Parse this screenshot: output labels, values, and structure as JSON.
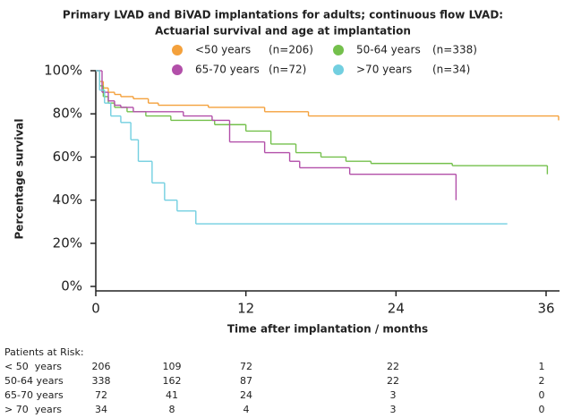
{
  "chart_data": {
    "type": "step",
    "title": "Primary LVAD and BiVAD implantations for adults; continuous flow LVAD:",
    "subtitle": "Actuarial survival and age at implantation",
    "xlabel": "Time after implantation / months",
    "ylabel": "Percentage survival",
    "xlim": [
      0,
      37
    ],
    "xticks": [
      0,
      12,
      24,
      36
    ],
    "ylim": [
      0,
      100
    ],
    "yticks": [
      {
        "value": 0,
        "label": "0%"
      },
      {
        "value": 20,
        "label": "20%"
      },
      {
        "value": 40,
        "label": "40%"
      },
      {
        "value": 60,
        "label": "60%"
      },
      {
        "value": 80,
        "label": "80%"
      },
      {
        "value": 100,
        "label": "100%"
      }
    ],
    "series": [
      {
        "name": "<50 years",
        "n_label": "(n=206)",
        "color": "#f4a13c",
        "x": [
          0,
          0.3,
          0.6,
          1,
          1.5,
          2,
          3,
          4.2,
          5,
          9,
          13.5,
          17,
          37
        ],
        "values": [
          100,
          95,
          92,
          90,
          89,
          88,
          87,
          85,
          84,
          83,
          81,
          79,
          77
        ]
      },
      {
        "name": "50-64 years",
        "n_label": "(n=338)",
        "color": "#74c04c",
        "x": [
          0,
          0.3,
          0.6,
          1,
          1.5,
          2.5,
          4,
          6,
          9.5,
          12,
          14,
          16,
          18,
          20,
          22,
          28.5,
          36.1
        ],
        "values": [
          100,
          93,
          88,
          85,
          83,
          81,
          79,
          77,
          75,
          72,
          66,
          62,
          60,
          58,
          57,
          56,
          52
        ]
      },
      {
        "name": "65-70 years",
        "n_label": "(n=72)",
        "color": "#b24fa9",
        "x": [
          0,
          0.5,
          1,
          1.5,
          2,
          3,
          7,
          9.3,
          10.7,
          13.5,
          15.5,
          16.3,
          20.3,
          28.8
        ],
        "values": [
          100,
          90,
          86,
          84,
          83,
          81,
          79,
          77,
          67,
          62,
          58,
          55,
          52,
          40
        ]
      },
      {
        "name": ">70 years",
        "n_label": "(n=34)",
        "color": "#72cfe0",
        "x": [
          0,
          0.3,
          0.7,
          1.2,
          2,
          2.8,
          3.4,
          4.5,
          5.5,
          6.5,
          8,
          32.9
        ],
        "values": [
          100,
          91,
          85,
          79,
          76,
          68,
          58,
          48,
          40,
          35,
          29,
          29
        ]
      }
    ],
    "risk_table": {
      "title": "Patients at Risk:",
      "rows": [
        {
          "label": "< 50  years",
          "values": [
            206,
            109,
            72,
            22,
            1
          ]
        },
        {
          "label": "50-64 years",
          "values": [
            338,
            162,
            87,
            22,
            2
          ]
        },
        {
          "label": "65-70 years",
          "values": [
            72,
            41,
            24,
            3,
            0
          ]
        },
        {
          "label": "> 70  years",
          "values": [
            34,
            8,
            4,
            3,
            0
          ]
        }
      ]
    }
  }
}
